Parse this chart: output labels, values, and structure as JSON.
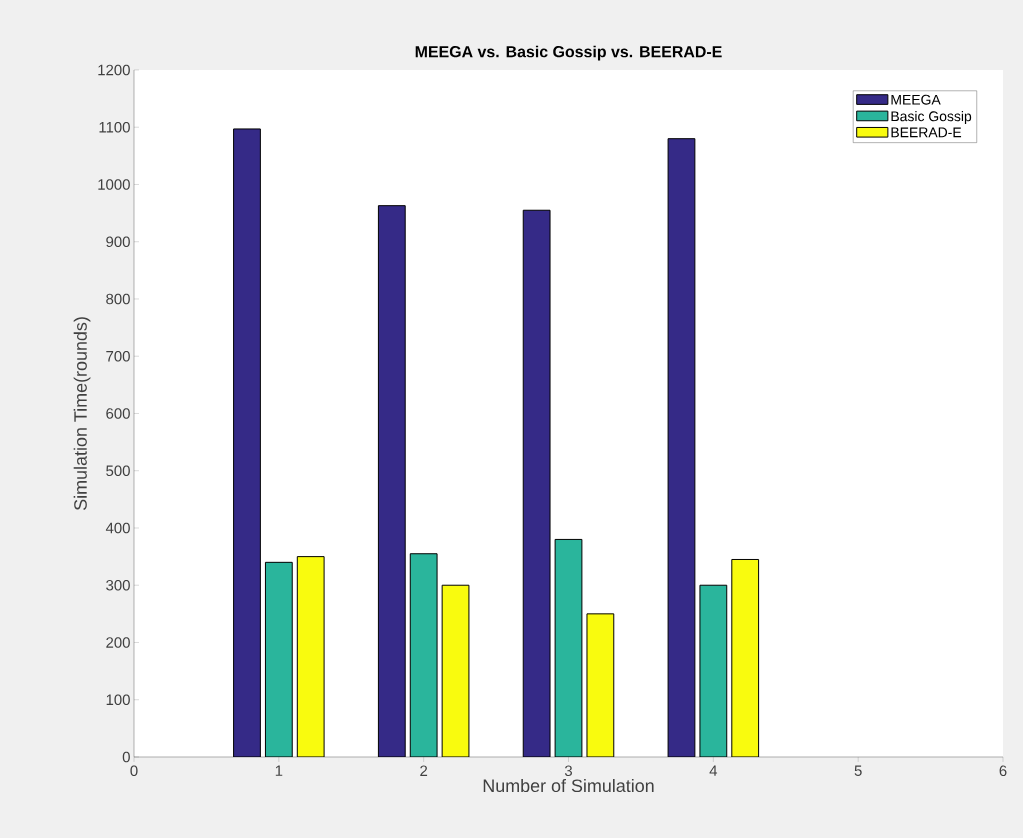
{
  "chart_data": {
    "type": "bar",
    "title": "MEEGA vs. Basic Gossip vs. BEERAD-E",
    "xlabel": "Number of Simulation",
    "ylabel": "Simulation Time(rounds)",
    "x": [
      1,
      2,
      3,
      4
    ],
    "series": [
      {
        "name": "MEEGA",
        "color": "#352a87",
        "values": [
          1097,
          963,
          955,
          1080
        ]
      },
      {
        "name": "Basic Gossip",
        "color": "#2ab59c",
        "values": [
          340,
          355,
          380,
          300
        ]
      },
      {
        "name": "BEERAD-E",
        "color": "#f9fb0e",
        "values": [
          350,
          300,
          250,
          345
        ]
      }
    ],
    "xlim": [
      0,
      6
    ],
    "xticks": [
      0,
      1,
      2,
      3,
      4,
      5,
      6
    ],
    "ylim": [
      0,
      1200
    ],
    "yticks": [
      0,
      100,
      200,
      300,
      400,
      500,
      600,
      700,
      800,
      900,
      1000,
      1100,
      1200
    ],
    "grid": false,
    "legend": "top right"
  }
}
